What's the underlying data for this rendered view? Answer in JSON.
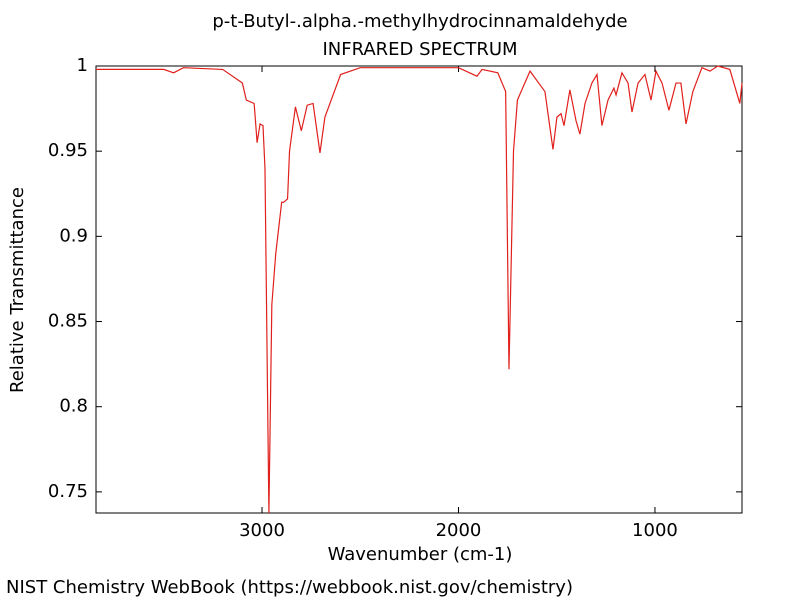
{
  "chart_data": {
    "type": "line",
    "title": "p-t-Butyl-.alpha.-methylhydrocinnamaldehyde",
    "subtitle": "INFRARED SPECTRUM",
    "x_label": "Wavenumber (cm-1)",
    "y_label": "Relative Transmittance",
    "footer": "NIST Chemistry WebBook (https://webbook.nist.gov/chemistry)",
    "xlim": [
      3845,
      557
    ],
    "ylim": [
      0.7376,
      1
    ],
    "xticks": [
      3000,
      2000,
      1000
    ],
    "yticks": [
      0.75,
      0.8,
      0.85,
      0.9,
      0.95,
      1
    ],
    "series": [
      {
        "color": "#e0201c",
        "x": [
          3845,
          3500,
          3450,
          3400,
          3200,
          3100,
          3080,
          3040,
          3025,
          3010,
          2995,
          2985,
          2965,
          2950,
          2930,
          2900,
          2890,
          2870,
          2860,
          2830,
          2800,
          2770,
          2740,
          2705,
          2680,
          2600,
          2500,
          2000,
          1906,
          1880,
          1800,
          1760,
          1743,
          1720,
          1700,
          1636,
          1560,
          1519,
          1499,
          1478,
          1463,
          1433,
          1402,
          1382,
          1356,
          1321,
          1295,
          1270,
          1239,
          1209,
          1198,
          1168,
          1137,
          1117,
          1086,
          1051,
          1020,
          995,
          964,
          929,
          893,
          868,
          842,
          807,
          761,
          720,
          680,
          619,
          568,
          557
        ],
        "values": [
          0.998,
          0.998,
          0.996,
          0.999,
          0.998,
          0.99,
          0.98,
          0.978,
          0.955,
          0.966,
          0.965,
          0.94,
          0.7376,
          0.86,
          0.89,
          0.92,
          0.92,
          0.922,
          0.95,
          0.976,
          0.962,
          0.977,
          0.978,
          0.949,
          0.97,
          0.995,
          0.999,
          0.999,
          0.994,
          0.998,
          0.996,
          0.985,
          0.822,
          0.95,
          0.98,
          0.997,
          0.985,
          0.951,
          0.97,
          0.972,
          0.965,
          0.986,
          0.968,
          0.96,
          0.978,
          0.99,
          0.995,
          0.965,
          0.98,
          0.987,
          0.983,
          0.996,
          0.99,
          0.973,
          0.99,
          0.995,
          0.98,
          0.997,
          0.99,
          0.974,
          0.99,
          0.99,
          0.966,
          0.985,
          0.999,
          0.997,
          1.0,
          0.998,
          0.978,
          0.99
        ]
      }
    ]
  }
}
